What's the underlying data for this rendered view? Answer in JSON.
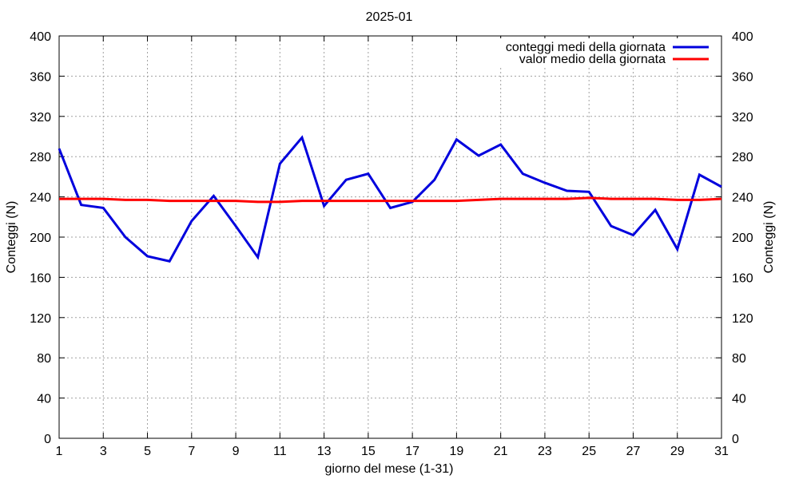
{
  "chart_data": {
    "type": "line",
    "title": "2025-01",
    "xlabel": "giorno del mese (1-31)",
    "ylabel": "Conteggi (N)",
    "y2label": "Conteggi (N)",
    "xlim": [
      1,
      31
    ],
    "ylim": [
      0,
      400
    ],
    "xticks": [
      1,
      3,
      5,
      7,
      9,
      11,
      13,
      15,
      17,
      19,
      21,
      23,
      25,
      27,
      29,
      31
    ],
    "yticks": [
      0,
      40,
      80,
      120,
      160,
      200,
      240,
      280,
      320,
      360,
      400
    ],
    "grid": true,
    "legend_position": "top-right",
    "x": [
      1,
      2,
      3,
      4,
      5,
      6,
      7,
      8,
      9,
      10,
      11,
      12,
      13,
      14,
      15,
      16,
      17,
      18,
      19,
      20,
      21,
      22,
      23,
      24,
      25,
      26,
      27,
      28,
      29,
      30,
      31
    ],
    "series": [
      {
        "name": "conteggi medi della giornata",
        "color": "#0000dd",
        "values": [
          288,
          232,
          229,
          200,
          181,
          176,
          216,
          241,
          211,
          180,
          273,
          299,
          231,
          257,
          263,
          229,
          235,
          257,
          297,
          281,
          292,
          263,
          254,
          246,
          245,
          211,
          202,
          227,
          188,
          262,
          250
        ]
      },
      {
        "name": "valor medio della giornata",
        "color": "#ff0000",
        "values": [
          238,
          238,
          238,
          237,
          237,
          236,
          236,
          236,
          236,
          235,
          235,
          236,
          236,
          236,
          236,
          236,
          236,
          236,
          236,
          237,
          238,
          238,
          238,
          238,
          239,
          238,
          238,
          238,
          237,
          237,
          238
        ]
      }
    ]
  }
}
